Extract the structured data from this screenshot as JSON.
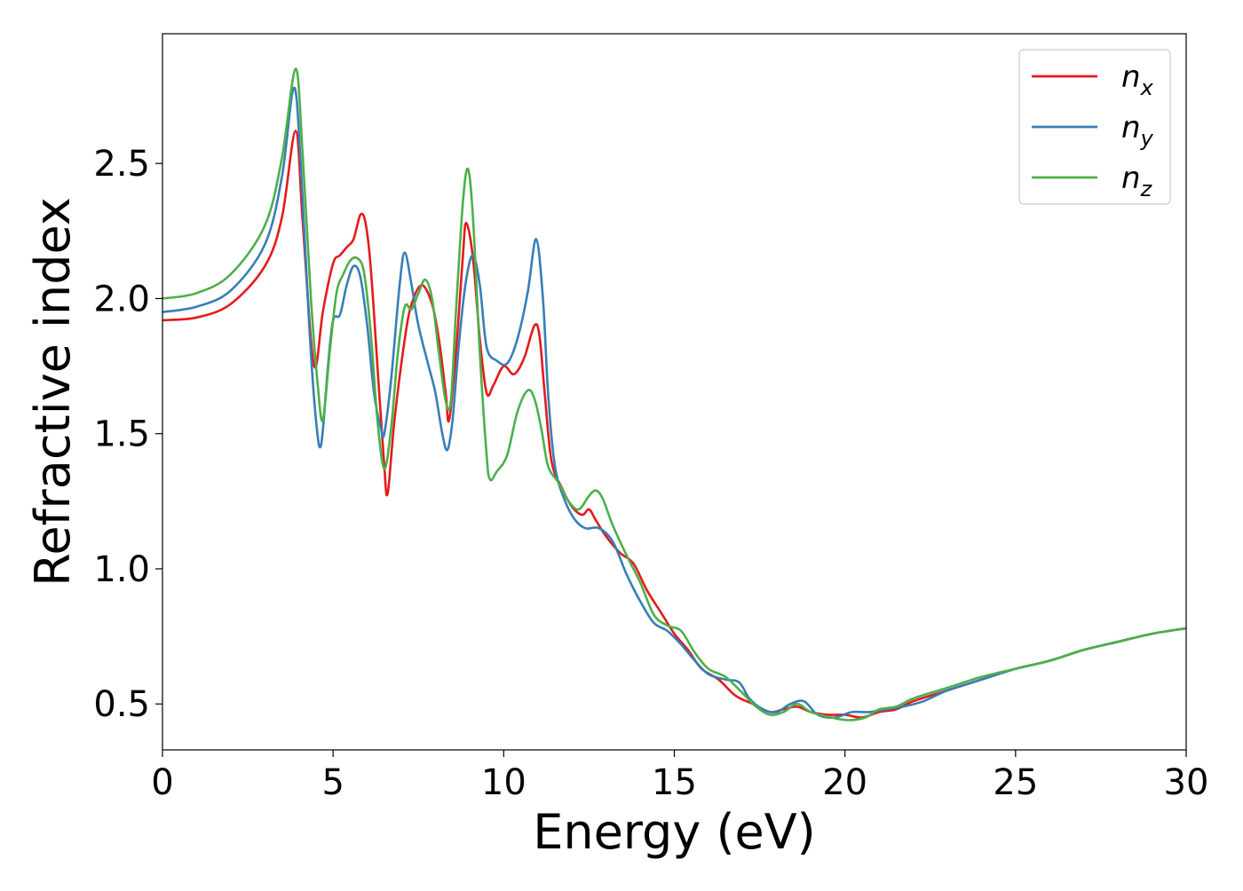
{
  "chart_data": {
    "type": "line",
    "title": "",
    "xlabel": "Energy (eV)",
    "ylabel": "Refractive index",
    "xlim": [
      0,
      30
    ],
    "ylim": [
      0.33,
      2.98
    ],
    "xticks": [
      0,
      5,
      10,
      15,
      20,
      25,
      30
    ],
    "yticks": [
      0.5,
      1.0,
      1.5,
      2.0,
      2.5
    ],
    "xtick_labels": [
      "0",
      "5",
      "10",
      "15",
      "20",
      "25",
      "30"
    ],
    "ytick_labels": [
      "0.5",
      "1.0",
      "1.5",
      "2.0",
      "2.5"
    ],
    "grid": false,
    "legend_position": "top-right",
    "series": [
      {
        "name": "n",
        "subscript": "x",
        "color": "#e41a1c",
        "points": [
          [
            0,
            1.92
          ],
          [
            1,
            1.93
          ],
          [
            2,
            1.98
          ],
          [
            3,
            2.12
          ],
          [
            3.5,
            2.3
          ],
          [
            3.9,
            2.62
          ],
          [
            4.1,
            2.3
          ],
          [
            4.35,
            1.85
          ],
          [
            4.5,
            1.75
          ],
          [
            4.7,
            1.95
          ],
          [
            5.0,
            2.13
          ],
          [
            5.2,
            2.16
          ],
          [
            5.4,
            2.19
          ],
          [
            5.6,
            2.22
          ],
          [
            5.8,
            2.31
          ],
          [
            5.95,
            2.28
          ],
          [
            6.1,
            2.12
          ],
          [
            6.3,
            1.75
          ],
          [
            6.5,
            1.38
          ],
          [
            6.6,
            1.28
          ],
          [
            6.8,
            1.55
          ],
          [
            7.1,
            1.85
          ],
          [
            7.3,
            1.98
          ],
          [
            7.6,
            2.05
          ],
          [
            7.9,
            1.98
          ],
          [
            8.1,
            1.85
          ],
          [
            8.3,
            1.65
          ],
          [
            8.4,
            1.55
          ],
          [
            8.6,
            1.8
          ],
          [
            8.8,
            2.15
          ],
          [
            8.9,
            2.28
          ],
          [
            9.1,
            2.15
          ],
          [
            9.3,
            1.85
          ],
          [
            9.5,
            1.65
          ],
          [
            9.7,
            1.68
          ],
          [
            10.0,
            1.75
          ],
          [
            10.3,
            1.72
          ],
          [
            10.6,
            1.78
          ],
          [
            10.9,
            1.9
          ],
          [
            11.05,
            1.86
          ],
          [
            11.2,
            1.65
          ],
          [
            11.4,
            1.4
          ],
          [
            11.7,
            1.3
          ],
          [
            12.0,
            1.23
          ],
          [
            12.3,
            1.2
          ],
          [
            12.5,
            1.22
          ],
          [
            12.7,
            1.18
          ],
          [
            13.0,
            1.12
          ],
          [
            13.4,
            1.06
          ],
          [
            13.8,
            1.02
          ],
          [
            14.2,
            0.92
          ],
          [
            14.6,
            0.84
          ],
          [
            15.0,
            0.76
          ],
          [
            15.4,
            0.7
          ],
          [
            15.8,
            0.63
          ],
          [
            16.3,
            0.59
          ],
          [
            16.8,
            0.53
          ],
          [
            17.3,
            0.5
          ],
          [
            17.8,
            0.47
          ],
          [
            18.2,
            0.48
          ],
          [
            18.6,
            0.49
          ],
          [
            19.0,
            0.47
          ],
          [
            19.5,
            0.46
          ],
          [
            20.0,
            0.46
          ],
          [
            20.5,
            0.45
          ],
          [
            21.0,
            0.47
          ],
          [
            21.5,
            0.48
          ],
          [
            22.0,
            0.51
          ],
          [
            23.0,
            0.55
          ],
          [
            24.0,
            0.59
          ],
          [
            25.0,
            0.63
          ],
          [
            26.0,
            0.66
          ],
          [
            27.0,
            0.7
          ],
          [
            28.0,
            0.73
          ],
          [
            29.0,
            0.76
          ],
          [
            30.0,
            0.78
          ]
        ]
      },
      {
        "name": "n",
        "subscript": "y",
        "color": "#377eb8",
        "points": [
          [
            0,
            1.95
          ],
          [
            1,
            1.97
          ],
          [
            2,
            2.03
          ],
          [
            3,
            2.2
          ],
          [
            3.5,
            2.45
          ],
          [
            3.85,
            2.78
          ],
          [
            4.05,
            2.5
          ],
          [
            4.3,
            1.9
          ],
          [
            4.5,
            1.55
          ],
          [
            4.65,
            1.46
          ],
          [
            4.85,
            1.75
          ],
          [
            5.0,
            1.92
          ],
          [
            5.2,
            1.94
          ],
          [
            5.4,
            2.05
          ],
          [
            5.6,
            2.12
          ],
          [
            5.8,
            2.08
          ],
          [
            6.0,
            1.9
          ],
          [
            6.2,
            1.65
          ],
          [
            6.4,
            1.52
          ],
          [
            6.5,
            1.5
          ],
          [
            6.7,
            1.7
          ],
          [
            6.95,
            2.05
          ],
          [
            7.1,
            2.17
          ],
          [
            7.3,
            2.05
          ],
          [
            7.5,
            1.9
          ],
          [
            7.8,
            1.75
          ],
          [
            8.0,
            1.65
          ],
          [
            8.2,
            1.5
          ],
          [
            8.35,
            1.44
          ],
          [
            8.5,
            1.55
          ],
          [
            8.7,
            1.85
          ],
          [
            8.9,
            2.07
          ],
          [
            9.1,
            2.16
          ],
          [
            9.3,
            2.05
          ],
          [
            9.5,
            1.82
          ],
          [
            9.8,
            1.77
          ],
          [
            10.1,
            1.76
          ],
          [
            10.4,
            1.85
          ],
          [
            10.7,
            2.02
          ],
          [
            10.95,
            2.22
          ],
          [
            11.15,
            2.0
          ],
          [
            11.3,
            1.65
          ],
          [
            11.5,
            1.38
          ],
          [
            11.8,
            1.25
          ],
          [
            12.1,
            1.18
          ],
          [
            12.4,
            1.15
          ],
          [
            12.8,
            1.15
          ],
          [
            13.2,
            1.1
          ],
          [
            13.6,
            0.98
          ],
          [
            14.0,
            0.88
          ],
          [
            14.4,
            0.8
          ],
          [
            14.8,
            0.77
          ],
          [
            15.2,
            0.72
          ],
          [
            15.6,
            0.66
          ],
          [
            16.0,
            0.61
          ],
          [
            16.5,
            0.59
          ],
          [
            16.9,
            0.58
          ],
          [
            17.2,
            0.52
          ],
          [
            17.6,
            0.48
          ],
          [
            18.0,
            0.47
          ],
          [
            18.4,
            0.5
          ],
          [
            18.8,
            0.51
          ],
          [
            19.2,
            0.46
          ],
          [
            19.7,
            0.45
          ],
          [
            20.2,
            0.47
          ],
          [
            20.7,
            0.47
          ],
          [
            21.2,
            0.48
          ],
          [
            21.7,
            0.49
          ],
          [
            22.3,
            0.51
          ],
          [
            23.0,
            0.55
          ],
          [
            24.0,
            0.59
          ],
          [
            25.0,
            0.63
          ],
          [
            26.0,
            0.66
          ],
          [
            27.0,
            0.7
          ],
          [
            28.0,
            0.73
          ],
          [
            29.0,
            0.76
          ],
          [
            30.0,
            0.78
          ]
        ]
      },
      {
        "name": "n",
        "subscript": "z",
        "color": "#4daf4a",
        "points": [
          [
            0,
            2.0
          ],
          [
            1,
            2.02
          ],
          [
            2,
            2.09
          ],
          [
            3,
            2.27
          ],
          [
            3.5,
            2.52
          ],
          [
            3.9,
            2.85
          ],
          [
            4.1,
            2.55
          ],
          [
            4.35,
            2.0
          ],
          [
            4.55,
            1.68
          ],
          [
            4.7,
            1.55
          ],
          [
            4.9,
            1.8
          ],
          [
            5.1,
            2.02
          ],
          [
            5.3,
            2.09
          ],
          [
            5.5,
            2.14
          ],
          [
            5.7,
            2.15
          ],
          [
            5.9,
            2.1
          ],
          [
            6.1,
            1.88
          ],
          [
            6.3,
            1.55
          ],
          [
            6.5,
            1.37
          ],
          [
            6.7,
            1.52
          ],
          [
            6.9,
            1.8
          ],
          [
            7.1,
            1.97
          ],
          [
            7.3,
            1.96
          ],
          [
            7.5,
            2.02
          ],
          [
            7.7,
            2.07
          ],
          [
            7.9,
            2.0
          ],
          [
            8.1,
            1.8
          ],
          [
            8.3,
            1.62
          ],
          [
            8.45,
            1.62
          ],
          [
            8.6,
            1.95
          ],
          [
            8.8,
            2.35
          ],
          [
            8.95,
            2.48
          ],
          [
            9.1,
            2.3
          ],
          [
            9.3,
            1.8
          ],
          [
            9.5,
            1.42
          ],
          [
            9.6,
            1.33
          ],
          [
            9.8,
            1.36
          ],
          [
            10.1,
            1.42
          ],
          [
            10.4,
            1.58
          ],
          [
            10.7,
            1.66
          ],
          [
            10.9,
            1.63
          ],
          [
            11.1,
            1.52
          ],
          [
            11.3,
            1.38
          ],
          [
            11.6,
            1.32
          ],
          [
            11.9,
            1.25
          ],
          [
            12.2,
            1.22
          ],
          [
            12.5,
            1.27
          ],
          [
            12.7,
            1.29
          ],
          [
            12.9,
            1.26
          ],
          [
            13.2,
            1.16
          ],
          [
            13.6,
            1.05
          ],
          [
            14.0,
            0.95
          ],
          [
            14.4,
            0.83
          ],
          [
            14.8,
            0.79
          ],
          [
            15.2,
            0.77
          ],
          [
            15.6,
            0.69
          ],
          [
            16.0,
            0.63
          ],
          [
            16.5,
            0.6
          ],
          [
            17.0,
            0.54
          ],
          [
            17.4,
            0.49
          ],
          [
            17.8,
            0.46
          ],
          [
            18.2,
            0.47
          ],
          [
            18.6,
            0.5
          ],
          [
            19.0,
            0.47
          ],
          [
            19.6,
            0.45
          ],
          [
            20.1,
            0.44
          ],
          [
            20.6,
            0.45
          ],
          [
            21.0,
            0.48
          ],
          [
            21.5,
            0.49
          ],
          [
            22.0,
            0.52
          ],
          [
            23.0,
            0.56
          ],
          [
            24.0,
            0.6
          ],
          [
            25.0,
            0.63
          ],
          [
            26.0,
            0.66
          ],
          [
            27.0,
            0.7
          ],
          [
            28.0,
            0.73
          ],
          [
            29.0,
            0.76
          ],
          [
            30.0,
            0.78
          ]
        ]
      }
    ]
  }
}
